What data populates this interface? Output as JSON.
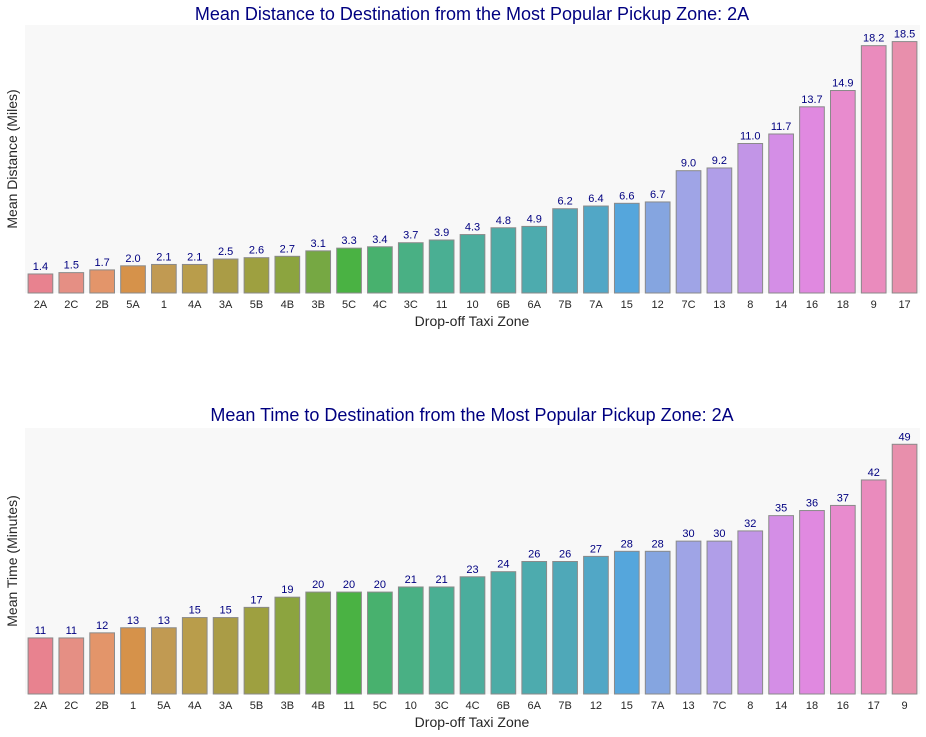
{
  "chart_data": [
    {
      "type": "bar",
      "title": "Mean Distance to Destination from the Most Popular Pickup Zone: 2A",
      "xlabel": "Drop-off Taxi Zone",
      "ylabel": "Mean Distance (Miles)",
      "ylim": [
        0,
        19.5
      ],
      "grid": false,
      "categories": [
        "2A",
        "2C",
        "2B",
        "5A",
        "1",
        "4A",
        "3A",
        "5B",
        "4B",
        "3B",
        "5C",
        "4C",
        "3C",
        "11",
        "10",
        "6B",
        "6A",
        "7B",
        "7A",
        "15",
        "12",
        "7C",
        "13",
        "8",
        "14",
        "16",
        "18",
        "9",
        "17"
      ],
      "values": [
        1.4,
        1.5,
        1.7,
        2.0,
        2.1,
        2.1,
        2.5,
        2.6,
        2.7,
        3.1,
        3.3,
        3.4,
        3.7,
        3.9,
        4.3,
        4.8,
        4.9,
        6.2,
        6.4,
        6.6,
        6.7,
        9.0,
        9.2,
        11.0,
        11.7,
        13.7,
        14.9,
        18.2,
        18.5
      ],
      "labels": [
        "1.4",
        "1.5",
        "1.7",
        "2.0",
        "2.1",
        "2.1",
        "2.5",
        "2.6",
        "2.7",
        "3.1",
        "3.3",
        "3.4",
        "3.7",
        "3.9",
        "4.3",
        "4.8",
        "4.9",
        "6.2",
        "6.4",
        "6.6",
        "6.7",
        "9.0",
        "9.2",
        "11.0",
        "11.7",
        "13.7",
        "14.9",
        "18.2",
        "18.5"
      ]
    },
    {
      "type": "bar",
      "title": "Mean Time to Destination from the Most Popular Pickup Zone: 2A",
      "xlabel": "Drop-off Taxi Zone",
      "ylabel": "Mean Time (Minutes)",
      "ylim": [
        0,
        52
      ],
      "grid": false,
      "categories": [
        "2A",
        "2C",
        "2B",
        "1",
        "5A",
        "4A",
        "3A",
        "5B",
        "3B",
        "4B",
        "11",
        "5C",
        "10",
        "3C",
        "4C",
        "6B",
        "6A",
        "7B",
        "12",
        "15",
        "7A",
        "13",
        "7C",
        "8",
        "14",
        "18",
        "16",
        "17",
        "9"
      ],
      "values": [
        11,
        11,
        12,
        13,
        13,
        15,
        15,
        17,
        19,
        20,
        20,
        20,
        21,
        21,
        23,
        24,
        26,
        26,
        27,
        28,
        28,
        30,
        30,
        32,
        35,
        36,
        37,
        42,
        49
      ],
      "labels": [
        "11",
        "11",
        "12",
        "13",
        "13",
        "15",
        "15",
        "17",
        "19",
        "20",
        "20",
        "20",
        "21",
        "21",
        "23",
        "24",
        "26",
        "26",
        "27",
        "28",
        "28",
        "30",
        "30",
        "32",
        "35",
        "36",
        "37",
        "42",
        "49"
      ]
    }
  ],
  "palette": [
    "#e8828f",
    "#e58f84",
    "#e3956a",
    "#d6924a",
    "#c19a52",
    "#b99d4b",
    "#aa9c46",
    "#9ea040",
    "#8ca43f",
    "#76a843",
    "#4ab243",
    "#48b16e",
    "#49b084",
    "#4aaf93",
    "#4bad9d",
    "#4caca6",
    "#4dabae",
    "#4fa8b8",
    "#51a7c6",
    "#55a6dc",
    "#85a5e0",
    "#9fa4e6",
    "#b09ee8",
    "#c295e7",
    "#d48ee6",
    "#e089e0",
    "#e88bce",
    "#ea8bbd",
    "#e88fac"
  ]
}
